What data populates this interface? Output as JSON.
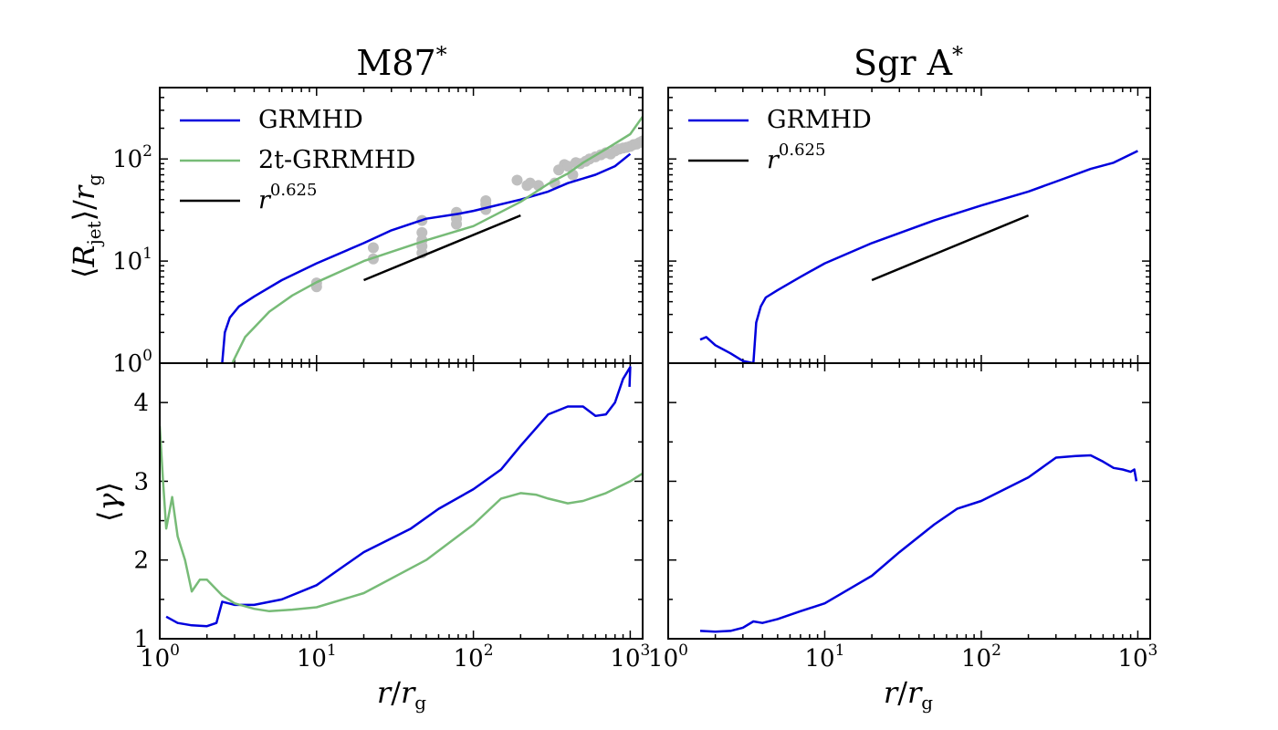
{
  "chart_data": [
    {
      "panel": "top-left",
      "type": "line",
      "title": "M87",
      "title_sup": "*",
      "ylabel": "⟨R_jet⟩/r_g",
      "xscale": "log",
      "yscale": "log",
      "xlim": [
        1,
        1200
      ],
      "ylim": [
        1,
        500
      ],
      "yticks": [
        {
          "base": "10",
          "exp": "0"
        },
        {
          "base": "10",
          "exp": "1"
        },
        {
          "base": "10",
          "exp": "2"
        }
      ],
      "legend": {
        "placement": "upper-left",
        "entries": [
          "GRMHD",
          "2t-GRRMHD",
          "r^0.625"
        ]
      },
      "series": [
        {
          "name": "GRMHD",
          "color": "#0000dd",
          "points": [
            [
              2.5,
              1.0
            ],
            [
              2.6,
              2.0
            ],
            [
              2.8,
              2.8
            ],
            [
              3.2,
              3.6
            ],
            [
              4,
              4.5
            ],
            [
              6,
              6.5
            ],
            [
              10,
              9.5
            ],
            [
              20,
              15
            ],
            [
              30,
              20
            ],
            [
              50,
              26
            ],
            [
              80,
              29
            ],
            [
              100,
              31
            ],
            [
              200,
              40
            ],
            [
              300,
              48
            ],
            [
              400,
              58
            ],
            [
              600,
              70
            ],
            [
              800,
              85
            ],
            [
              1000,
              112
            ]
          ]
        },
        {
          "name": "2t-GRRMHD",
          "color": "#77bb77",
          "points": [
            [
              2.9,
              1.0
            ],
            [
              3.5,
              1.8
            ],
            [
              5,
              3.2
            ],
            [
              7,
              4.6
            ],
            [
              10,
              6.2
            ],
            [
              20,
              10
            ],
            [
              50,
              16
            ],
            [
              100,
              22
            ],
            [
              200,
              38
            ],
            [
              300,
              57
            ],
            [
              400,
              72
            ],
            [
              500,
              92
            ],
            [
              700,
              125
            ],
            [
              1000,
              175
            ],
            [
              1200,
              260
            ]
          ]
        },
        {
          "name": "r^0.625",
          "color": "#000000",
          "points": [
            [
              20,
              6.5
            ],
            [
              200,
              28
            ]
          ]
        }
      ],
      "observations": {
        "color": "#bfbfbf",
        "points": [
          [
            10,
            5.6
          ],
          [
            10,
            6.1
          ],
          [
            23,
            10.5
          ],
          [
            23,
            13.5
          ],
          [
            47,
            12
          ],
          [
            47,
            14
          ],
          [
            47,
            16
          ],
          [
            47,
            19
          ],
          [
            47,
            25
          ],
          [
            78,
            23
          ],
          [
            78,
            26
          ],
          [
            78,
            30
          ],
          [
            120,
            32
          ],
          [
            120,
            36
          ],
          [
            120,
            39
          ],
          [
            190,
            62
          ],
          [
            220,
            55
          ],
          [
            230,
            58
          ],
          [
            260,
            55
          ],
          [
            330,
            58
          ],
          [
            350,
            78
          ],
          [
            380,
            88
          ],
          [
            400,
            85
          ],
          [
            430,
            70
          ],
          [
            450,
            92
          ],
          [
            480,
            90
          ],
          [
            520,
            95
          ],
          [
            550,
            100
          ],
          [
            600,
            105
          ],
          [
            650,
            110
          ],
          [
            700,
            115
          ],
          [
            750,
            112
          ],
          [
            800,
            120
          ],
          [
            850,
            125
          ],
          [
            900,
            128
          ],
          [
            950,
            130
          ],
          [
            1000,
            133
          ],
          [
            1050,
            138
          ],
          [
            1100,
            140
          ],
          [
            1150,
            145
          ],
          [
            1200,
            150
          ]
        ]
      }
    },
    {
      "panel": "top-right",
      "type": "line",
      "title": "Sgr A",
      "title_sup": "*",
      "xscale": "log",
      "yscale": "log",
      "xlim": [
        1,
        1200
      ],
      "ylim": [
        1,
        500
      ],
      "legend": {
        "placement": "upper-left",
        "entries": [
          "GRMHD",
          "r^0.625"
        ]
      },
      "series": [
        {
          "name": "GRMHD",
          "color": "#0000dd",
          "points": [
            [
              1.6,
              1.7
            ],
            [
              1.75,
              1.8
            ],
            [
              2,
              1.5
            ],
            [
              2.5,
              1.25
            ],
            [
              3,
              1.05
            ],
            [
              3.5,
              1.0
            ],
            [
              3.65,
              2.5
            ],
            [
              3.9,
              3.6
            ],
            [
              4.2,
              4.4
            ],
            [
              5,
              5.2
            ],
            [
              7,
              7
            ],
            [
              10,
              9.5
            ],
            [
              20,
              15
            ],
            [
              50,
              25
            ],
            [
              100,
              35
            ],
            [
              200,
              48
            ],
            [
              300,
              60
            ],
            [
              500,
              80
            ],
            [
              700,
              92
            ],
            [
              1000,
              120
            ]
          ]
        },
        {
          "name": "r^0.625",
          "color": "#000000",
          "points": [
            [
              20,
              6.5
            ],
            [
              200,
              28
            ]
          ]
        }
      ]
    },
    {
      "panel": "bottom-left",
      "type": "line",
      "xlabel": "r/r_g",
      "ylabel": "⟨γ⟩",
      "xscale": "log",
      "yscale": "linear",
      "xlim": [
        1,
        1200
      ],
      "ylim": [
        1,
        4.5
      ],
      "yticks": [
        1,
        2,
        3,
        4
      ],
      "xticks": [
        {
          "base": "10",
          "exp": "0"
        },
        {
          "base": "10",
          "exp": "1"
        },
        {
          "base": "10",
          "exp": "2"
        },
        {
          "base": "10",
          "exp": "3"
        }
      ],
      "series": [
        {
          "name": "GRMHD",
          "color": "#0000dd",
          "points": [
            [
              1.1,
              1.28
            ],
            [
              1.3,
              1.2
            ],
            [
              1.6,
              1.17
            ],
            [
              2,
              1.16
            ],
            [
              2.3,
              1.2
            ],
            [
              2.5,
              1.47
            ],
            [
              3,
              1.43
            ],
            [
              4,
              1.43
            ],
            [
              6,
              1.5
            ],
            [
              10,
              1.68
            ],
            [
              20,
              2.1
            ],
            [
              40,
              2.4
            ],
            [
              60,
              2.65
            ],
            [
              100,
              2.9
            ],
            [
              150,
              3.15
            ],
            [
              200,
              3.45
            ],
            [
              300,
              3.85
            ],
            [
              400,
              3.95
            ],
            [
              500,
              3.95
            ],
            [
              600,
              3.83
            ],
            [
              700,
              3.85
            ],
            [
              800,
              4.0
            ],
            [
              900,
              4.3
            ],
            [
              1000,
              4.45
            ],
            [
              990,
              4.2
            ]
          ]
        },
        {
          "name": "2t-GRRMHD",
          "color": "#77bb77",
          "points": [
            [
              1.0,
              3.7
            ],
            [
              1.05,
              3.0
            ],
            [
              1.1,
              2.4
            ],
            [
              1.2,
              2.8
            ],
            [
              1.3,
              2.3
            ],
            [
              1.45,
              2.0
            ],
            [
              1.6,
              1.6
            ],
            [
              1.8,
              1.75
            ],
            [
              2,
              1.75
            ],
            [
              2.5,
              1.55
            ],
            [
              3,
              1.45
            ],
            [
              4,
              1.38
            ],
            [
              5,
              1.35
            ],
            [
              7,
              1.37
            ],
            [
              10,
              1.4
            ],
            [
              20,
              1.58
            ],
            [
              50,
              2.0
            ],
            [
              100,
              2.45
            ],
            [
              150,
              2.78
            ],
            [
              200,
              2.85
            ],
            [
              250,
              2.83
            ],
            [
              300,
              2.78
            ],
            [
              400,
              2.72
            ],
            [
              500,
              2.75
            ],
            [
              700,
              2.85
            ],
            [
              1000,
              3.0
            ],
            [
              1200,
              3.1
            ]
          ]
        }
      ]
    },
    {
      "panel": "bottom-right",
      "type": "line",
      "xlabel": "r/r_g",
      "xscale": "log",
      "yscale": "linear",
      "xlim": [
        1,
        1200
      ],
      "ylim": [
        1,
        4.5
      ],
      "xticks": [
        {
          "base": "10",
          "exp": "0"
        },
        {
          "base": "10",
          "exp": "1"
        },
        {
          "base": "10",
          "exp": "2"
        },
        {
          "base": "10",
          "exp": "3"
        }
      ],
      "series": [
        {
          "name": "GRMHD",
          "color": "#0000dd",
          "points": [
            [
              1.6,
              1.1
            ],
            [
              2,
              1.09
            ],
            [
              2.5,
              1.1
            ],
            [
              3,
              1.14
            ],
            [
              3.5,
              1.22
            ],
            [
              4,
              1.2
            ],
            [
              5,
              1.25
            ],
            [
              7,
              1.35
            ],
            [
              10,
              1.45
            ],
            [
              20,
              1.8
            ],
            [
              30,
              2.1
            ],
            [
              50,
              2.45
            ],
            [
              70,
              2.65
            ],
            [
              100,
              2.75
            ],
            [
              200,
              3.05
            ],
            [
              300,
              3.3
            ],
            [
              400,
              3.32
            ],
            [
              500,
              3.33
            ],
            [
              600,
              3.25
            ],
            [
              700,
              3.17
            ],
            [
              800,
              3.15
            ],
            [
              900,
              3.12
            ],
            [
              950,
              3.15
            ],
            [
              980,
              3.0
            ]
          ]
        }
      ]
    }
  ]
}
